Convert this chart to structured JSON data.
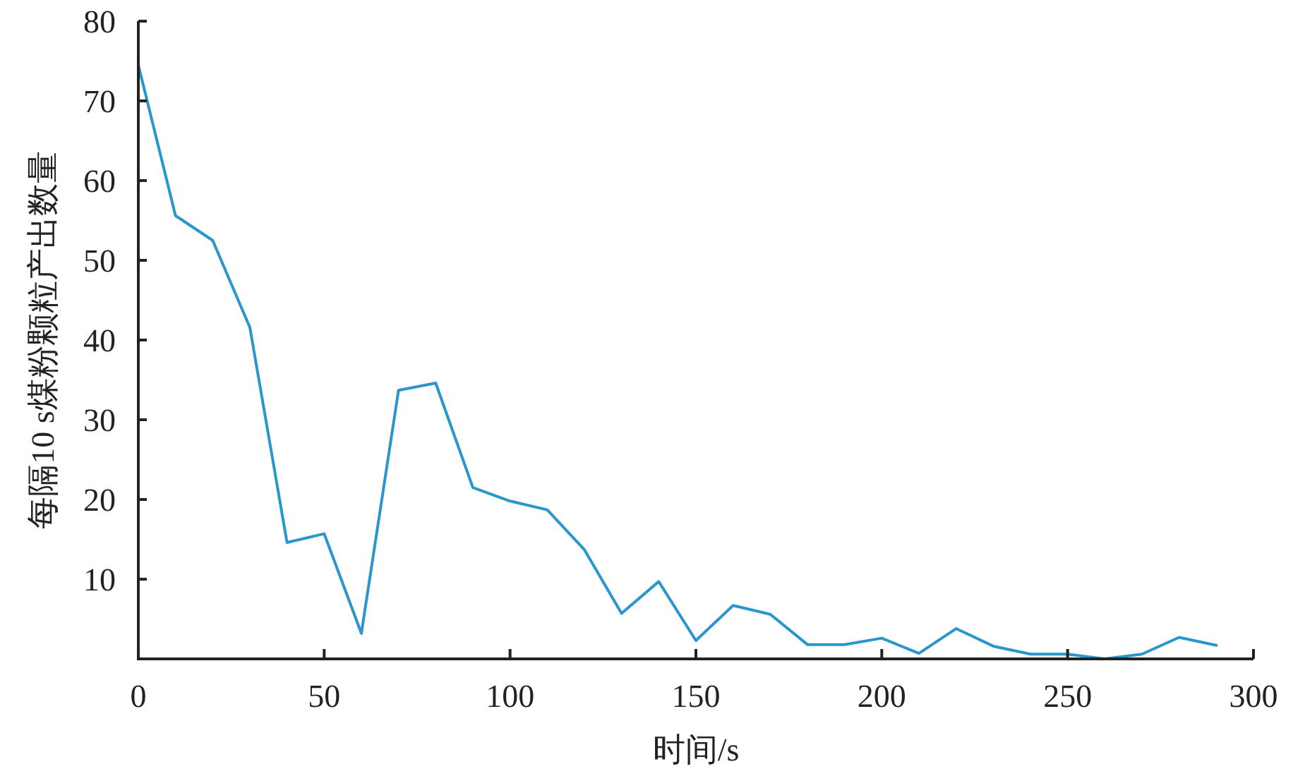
{
  "chart_data": {
    "type": "line",
    "xlabel": "时间/s",
    "ylabel": "每隔10 s煤粉颗粒产出数量",
    "x": [
      0,
      10,
      20,
      30,
      40,
      50,
      60,
      70,
      80,
      90,
      100,
      110,
      120,
      130,
      140,
      150,
      160,
      170,
      180,
      190,
      200,
      210,
      220,
      230,
      240,
      250,
      260,
      270,
      280,
      290
    ],
    "series": [
      {
        "color": "#2b96cc",
        "values": [
          74.5,
          55.6,
          52.5,
          41.6,
          14.6,
          15.7,
          3.2,
          33.7,
          34.6,
          21.5,
          19.8,
          18.7,
          13.7,
          5.7,
          9.7,
          2.3,
          6.7,
          5.6,
          1.8,
          1.8,
          2.6,
          0.7,
          3.8,
          1.6,
          0.6,
          0.6,
          0,
          0.6,
          2.7,
          1.7
        ]
      }
    ],
    "xlim": [
      0,
      300
    ],
    "xticks": [
      0,
      50,
      100,
      150,
      200,
      250,
      300
    ],
    "ylim": [
      0,
      80
    ],
    "yticks": [
      10,
      20,
      30,
      40,
      50,
      60,
      70,
      80
    ]
  }
}
